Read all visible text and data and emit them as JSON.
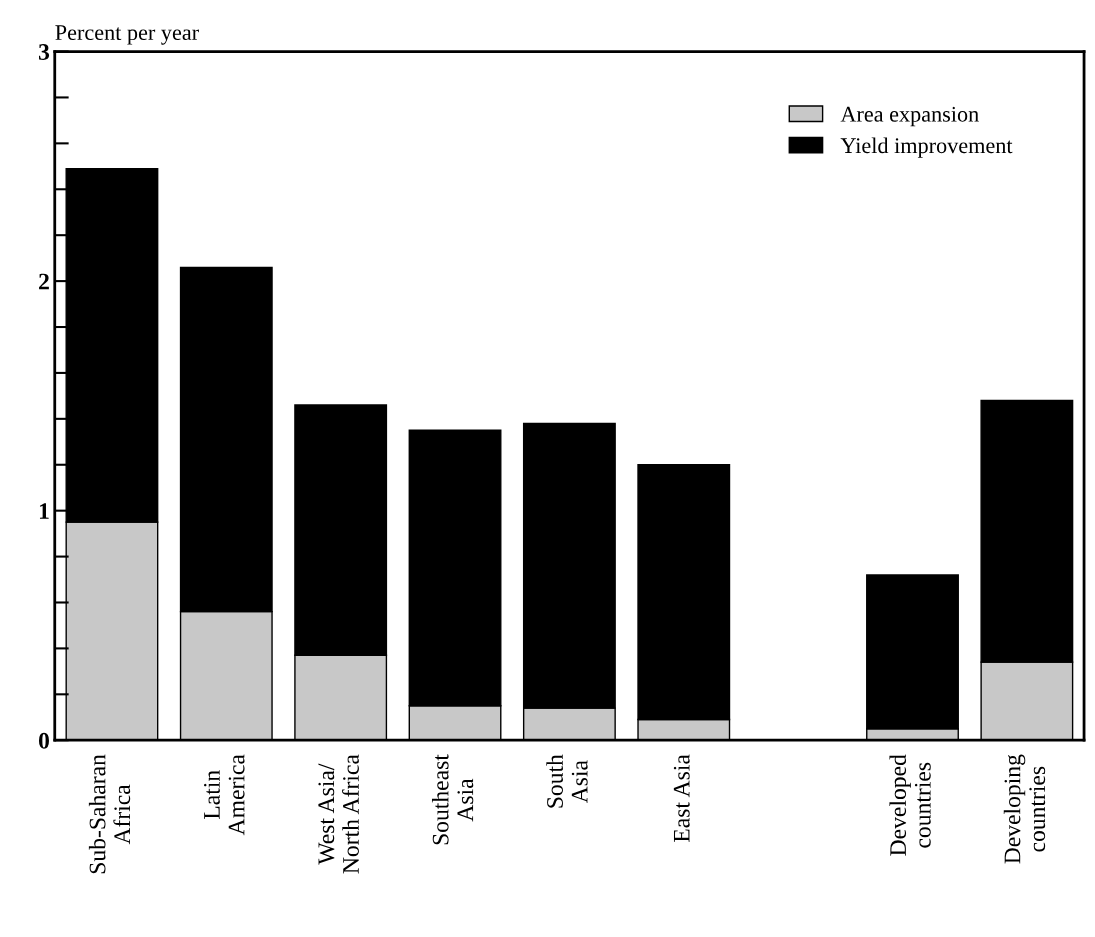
{
  "chart_data": {
    "type": "bar",
    "stacked": true,
    "ylabel": "Percent per year",
    "categories": [
      "Sub-Saharan\nAfrica",
      "Latin\nAmerica",
      "West Asia/\nNorth Africa",
      "Southeast\nAsia",
      "South\nAsia",
      "East Asia",
      null,
      "Developed\ncountries",
      "Developing\ncountries"
    ],
    "series": [
      {
        "name": "Area expansion",
        "color": "#c8c8c8",
        "values": [
          0.95,
          0.56,
          0.37,
          0.15,
          0.14,
          0.09,
          null,
          0.05,
          0.34
        ]
      },
      {
        "name": "Yield improvement",
        "color": "#000000",
        "values": [
          1.54,
          1.5,
          1.09,
          1.2,
          1.24,
          1.11,
          null,
          0.67,
          1.14
        ]
      }
    ],
    "ylim": [
      0,
      3
    ],
    "yticks": [
      0,
      {
        "value": 0.2,
        "label": null
      },
      {
        "value": 0.4,
        "label": null
      },
      {
        "value": 0.6,
        "label": null
      },
      {
        "value": 0.8,
        "label": null
      },
      1,
      {
        "value": 1.2,
        "label": null
      },
      {
        "value": 1.4,
        "label": null
      },
      {
        "value": 1.6,
        "label": null
      },
      {
        "value": 1.8,
        "label": null
      },
      2,
      {
        "value": 2.2,
        "label": null
      },
      {
        "value": 2.4,
        "label": null
      },
      {
        "value": 2.6,
        "label": null
      },
      {
        "value": 2.8,
        "label": null
      },
      3
    ],
    "grid": false,
    "legend": "top right"
  }
}
